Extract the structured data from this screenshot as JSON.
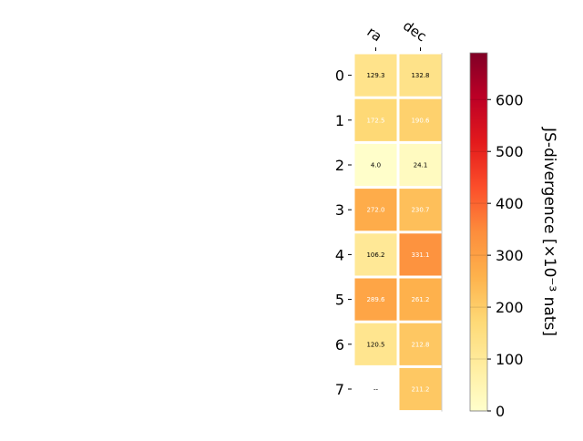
{
  "chart_data": {
    "type": "heatmap",
    "columns": [
      "ra",
      "dec"
    ],
    "rows": [
      "0",
      "1",
      "2",
      "3",
      "4",
      "5",
      "6",
      "7"
    ],
    "values": [
      [
        129.3,
        132.8
      ],
      [
        172.5,
        190.6
      ],
      [
        4.0,
        24.1
      ],
      [
        272.0,
        230.7
      ],
      [
        106.2,
        331.1
      ],
      [
        289.6,
        261.2
      ],
      [
        120.5,
        212.8
      ],
      [
        null,
        211.2
      ]
    ],
    "cell_labels": [
      [
        "129.3",
        "132.8"
      ],
      [
        "172.5",
        "190.6"
      ],
      [
        "4.0",
        "24.1"
      ],
      [
        "272.0",
        "230.7"
      ],
      [
        "106.2",
        "331.1"
      ],
      [
        "289.6",
        "261.2"
      ],
      [
        "120.5",
        "212.8"
      ],
      [
        "--",
        "211.2"
      ]
    ],
    "colorbar": {
      "label": "JS-divergence [×10⁻³ nats]",
      "ticks": [
        "0",
        "100",
        "200",
        "300",
        "400",
        "500",
        "600"
      ],
      "range": [
        0,
        690
      ],
      "colormap": "YlOrRd",
      "colormap_stops": [
        "#ffffcc",
        "#ffeda0",
        "#fed976",
        "#feb24c",
        "#fd8d3c",
        "#fc4e2a",
        "#e31a1c",
        "#bd0026",
        "#800026"
      ]
    },
    "grid": false
  }
}
